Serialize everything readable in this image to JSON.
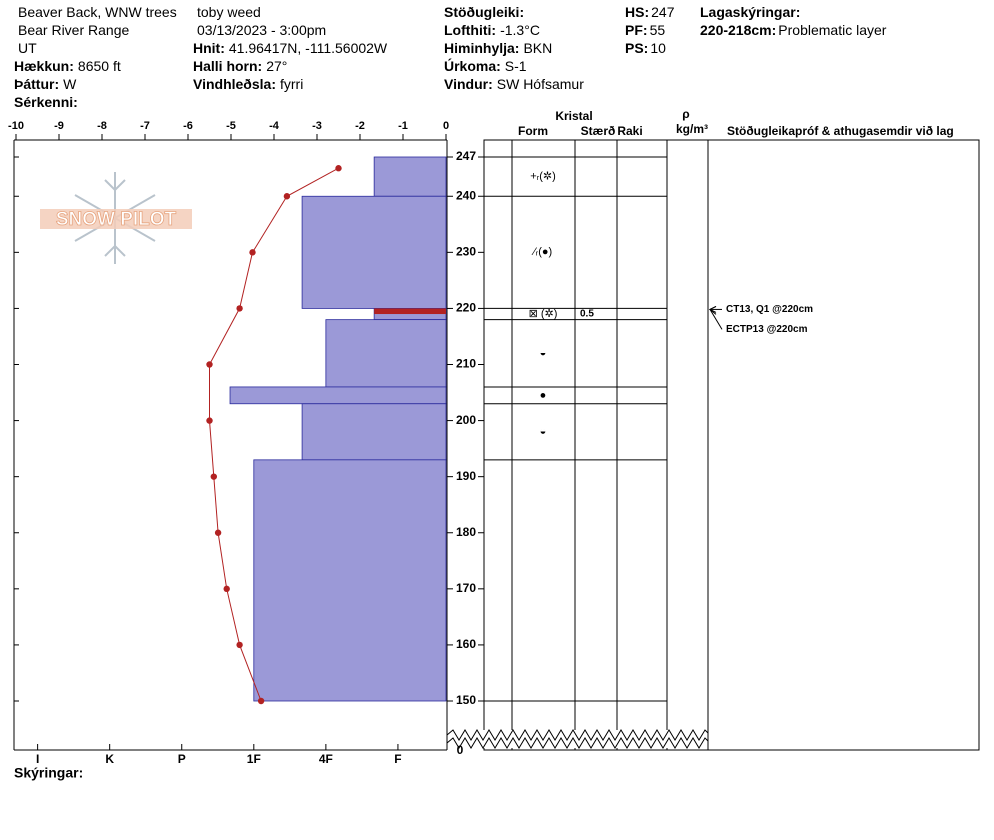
{
  "header": {
    "columns": [
      [
        {
          "value": "Beaver Back, WNW trees"
        },
        {
          "value": "Bear River Range"
        },
        {
          "value": "UT"
        },
        {
          "label": "Hækkun:",
          "value": "8650 ft"
        },
        {
          "label": "Þáttur:",
          "value": "W"
        },
        {
          "label": "Sérkenni:"
        }
      ],
      [
        {
          "value": "toby weed"
        },
        {
          "value": "03/13/2023 - 3:00pm"
        },
        {
          "label": "Hnit:",
          "value": "41.96417N, -111.56002W"
        },
        {
          "label": "Halli horn:",
          "value": "27°"
        },
        {
          "label": "Vindhleðsla:",
          "value": "fyrri"
        }
      ],
      [
        {
          "label": "Stöðugleiki:"
        },
        {
          "label": "Lofthiti:",
          "value": "-1.3°C"
        },
        {
          "label": "Himinhylja:",
          "value": "BKN"
        },
        {
          "label": "Úrkoma:",
          "value": "S-1"
        },
        {
          "label": "Vindur:",
          "value": "SW Hófsamur"
        }
      ],
      [
        {
          "label": "HS:",
          "value": "247"
        },
        {
          "label": "PF:",
          "value": "55"
        },
        {
          "label": "PS:",
          "value": "10"
        }
      ],
      [
        {
          "label": "Lagaskýringar:"
        },
        {
          "label": "220-218cm:",
          "value": "Problematic layer"
        }
      ]
    ],
    "notes_label": "Skýringar:"
  },
  "chart_data": {
    "type": "snow-profile",
    "logo": "SNOW PILOT",
    "xlim": [
      -10,
      0
    ],
    "xticks": [
      -10,
      -9,
      -8,
      -7,
      -6,
      -5,
      -4,
      -3,
      -2,
      -1,
      0
    ],
    "ylim": [
      150,
      247
    ],
    "yticks": [
      150,
      160,
      170,
      180,
      190,
      200,
      210,
      220,
      230,
      240,
      247
    ],
    "base_tick": 0,
    "temperature": {
      "color": "#b22222",
      "heights": [
        245,
        240,
        230,
        220,
        210,
        200,
        190,
        180,
        170,
        160,
        150
      ],
      "values": [
        -2.5,
        -3.7,
        -4.5,
        -4.8,
        -5.5,
        -5.5,
        -5.4,
        -5.3,
        -5.1,
        -4.8,
        -4.3
      ]
    },
    "hardness_lim": [
      0.333,
      6.3
    ],
    "hardness_ticks": [
      {
        "value": 6,
        "label": "I"
      },
      {
        "value": 5,
        "label": "K"
      },
      {
        "value": 4,
        "label": "P"
      },
      {
        "value": 3,
        "label": "1F"
      },
      {
        "value": 2,
        "label": "4F"
      },
      {
        "value": 1,
        "label": "F"
      }
    ],
    "layer_color": "#9b99d7",
    "problem_color": "#b22222",
    "layers": [
      {
        "top": 247,
        "bottom": 240,
        "hardness": 1.33,
        "form": "+ᵣ(✲)"
      },
      {
        "top": 240,
        "bottom": 220,
        "hardness": 2.33,
        "form": "⁄ᵣ(●)"
      },
      {
        "top": 220,
        "bottom": 218,
        "hardness": 1.33,
        "form": "⊠ (✲)",
        "size": "0.5",
        "problematic": true
      },
      {
        "top": 218,
        "bottom": 206,
        "hardness": 2,
        "form": "◒"
      },
      {
        "top": 206,
        "bottom": 203,
        "hardness": 3.33,
        "form": "●"
      },
      {
        "top": 203,
        "bottom": 193,
        "hardness": 2.33,
        "form": "◒"
      },
      {
        "top": 193,
        "bottom": 150,
        "hardness": 3,
        "form": ""
      }
    ],
    "table_headers": {
      "crystal": "Kristal",
      "form": "Form",
      "size": "Stærð",
      "moisture": "Raki",
      "rho": "ρ",
      "density_unit": "kg/m³",
      "tests": "Stöðugleikapróf & athugasemdir við lag"
    },
    "stability_tests": [
      {
        "text": "CT13, Q1 @220cm",
        "height": 220
      },
      {
        "text": "ECTP13 @220cm",
        "height": 220
      }
    ]
  }
}
